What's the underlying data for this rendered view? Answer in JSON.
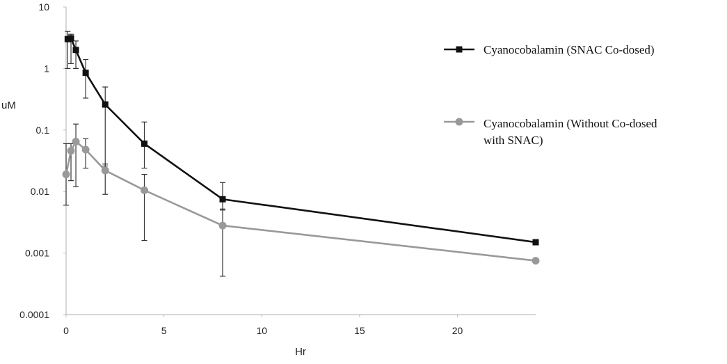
{
  "chart_data": {
    "type": "line",
    "title": "",
    "xlabel": "Hr",
    "ylabel": "uM",
    "yscale": "log",
    "xlim": [
      0,
      24
    ],
    "ylim": [
      0.0001,
      10
    ],
    "xticks": [
      0,
      5,
      10,
      15,
      20
    ],
    "xtick_labels": [
      "0",
      "5",
      "10",
      "15",
      "20"
    ],
    "yticks": [
      0.0001,
      0.001,
      0.01,
      0.1,
      1,
      10
    ],
    "ytick_labels": [
      "0.0001",
      "0.001",
      "0.01",
      "0.1",
      "1",
      "10"
    ],
    "grid": false,
    "legend_position": "right",
    "series": [
      {
        "name": "Cyanocobalamin (SNAC Co-dosed)",
        "legend_lines": [
          "Cyanocobalamin (SNAC Co-dosed)"
        ],
        "color": "#111111",
        "marker": "square",
        "x": [
          0.083,
          0.25,
          0.5,
          1,
          2,
          4,
          8,
          24
        ],
        "y": [
          3.0,
          3.1,
          2.0,
          0.85,
          0.26,
          0.06,
          0.0075,
          0.0015
        ],
        "err_low": [
          1.0,
          1.2,
          1.0,
          0.33,
          0.026,
          0.024,
          0.005,
          null
        ],
        "err_high": [
          4.0,
          3.6,
          2.8,
          1.4,
          0.5,
          0.135,
          0.014,
          null
        ]
      },
      {
        "name": "Cyanocobalamin (Without Co-dosed with SNAC)",
        "legend_lines": [
          "Cyanocobalamin (Without Co-dosed",
          "with SNAC)"
        ],
        "color": "#999999",
        "marker": "circle",
        "x": [
          0,
          0.25,
          0.5,
          1,
          2,
          4,
          8,
          24
        ],
        "y": [
          0.019,
          0.046,
          0.065,
          0.048,
          0.022,
          0.0105,
          0.0028,
          0.00075
        ],
        "err_low": [
          0.006,
          0.015,
          0.012,
          0.024,
          0.009,
          0.0016,
          0.00042,
          null
        ],
        "err_high": [
          0.06,
          0.06,
          0.125,
          0.072,
          0.028,
          0.019,
          0.0052,
          null
        ]
      }
    ]
  }
}
